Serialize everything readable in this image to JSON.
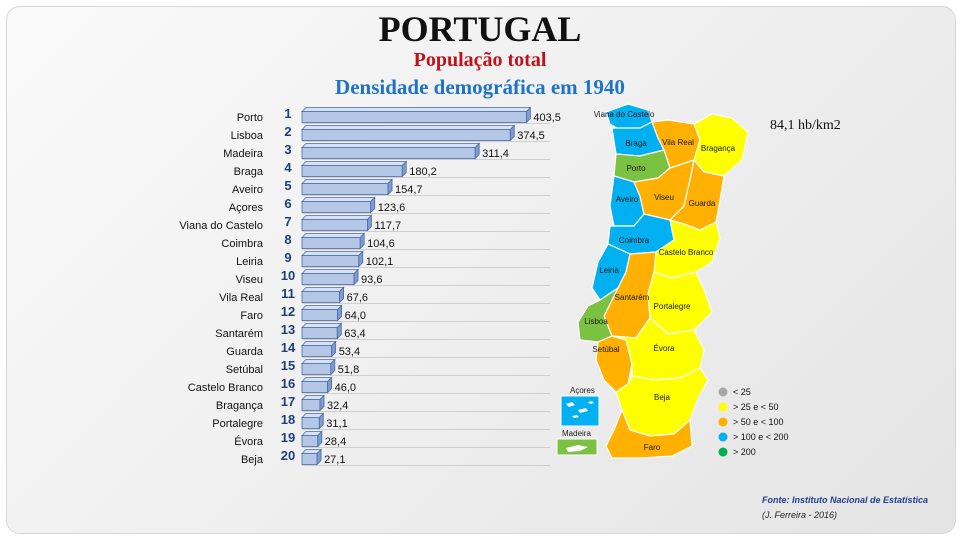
{
  "header": {
    "title": "PORTUGAL",
    "subtitle": "População total",
    "subtitle2": "Densidade demográfica em 1940"
  },
  "national_density": "84,1 hb/km2",
  "source": "Fonte: Instituto Nacional de Estatística",
  "author": "(J. Ferreira - 2016)",
  "map": {
    "regions": [
      {
        "name": "Viana do Castelo",
        "class": "> 100 e < 200"
      },
      {
        "name": "Braga",
        "class": "> 100 e < 200"
      },
      {
        "name": "Vila Real",
        "class": "> 50 e < 100"
      },
      {
        "name": "Bragança",
        "class": "> 25 e < 50"
      },
      {
        "name": "Porto",
        "class": "> 200"
      },
      {
        "name": "Aveiro",
        "class": "> 100 e < 200"
      },
      {
        "name": "Viseu",
        "class": "> 50 e < 100"
      },
      {
        "name": "Guarda",
        "class": "> 50 e < 100"
      },
      {
        "name": "Coimbra",
        "class": "> 100 e < 200"
      },
      {
        "name": "Castelo Branco",
        "class": "> 25 e < 50"
      },
      {
        "name": "Leiria",
        "class": "> 100 e < 200"
      },
      {
        "name": "Santarém",
        "class": "> 50 e < 100"
      },
      {
        "name": "Portalegre",
        "class": "> 25 e < 50"
      },
      {
        "name": "Lisboa",
        "class": "> 200"
      },
      {
        "name": "Setúbal",
        "class": "> 50 e < 100"
      },
      {
        "name": "Évora",
        "class": "> 25 e < 50"
      },
      {
        "name": "Beja",
        "class": "> 25 e < 50"
      },
      {
        "name": "Faro",
        "class": "> 50 e < 100"
      }
    ],
    "islands": [
      {
        "name": "Açores",
        "class": "> 100 e < 200"
      },
      {
        "name": "Madeira",
        "class": "> 200"
      }
    ],
    "legend": [
      {
        "label": "< 25",
        "color": "#a6a6a6"
      },
      {
        "label": "> 25 e < 50",
        "color": "#ffff00"
      },
      {
        "label": "> 50 e < 100",
        "color": "#ffb000"
      },
      {
        "label": "> 100 e < 200",
        "color": "#00b0f0"
      },
      {
        "label": "> 200",
        "color": "#00b050"
      }
    ]
  },
  "chart_data": {
    "type": "bar",
    "orientation": "horizontal",
    "title": "Densidade demográfica em 1940",
    "categories": [
      "Porto",
      "Lisboa",
      "Madeira",
      "Braga",
      "Aveiro",
      "Açores",
      "Viana do Castelo",
      "Coimbra",
      "Leiria",
      "Viseu",
      "Vila Real",
      "Faro",
      "Santarém",
      "Guarda",
      "Setúbal",
      "Castelo Branco",
      "Bragança",
      "Portalegre",
      "Évora",
      "Beja"
    ],
    "ranks": [
      "1",
      "2",
      "3",
      "4",
      "5",
      "6",
      "7",
      "8",
      "9",
      "10",
      "11",
      "12",
      "13",
      "14",
      "15",
      "16",
      "17",
      "18",
      "19",
      "20"
    ],
    "values": [
      403.5,
      374.5,
      311.4,
      180.2,
      154.7,
      123.6,
      117.7,
      104.6,
      102.1,
      93.6,
      67.6,
      64.0,
      63.4,
      53.4,
      51.8,
      46.0,
      32.4,
      31.1,
      28.4,
      27.1
    ],
    "value_labels": [
      "403,5",
      "374,5",
      "311,4",
      "180,2",
      "154,7",
      "123,6",
      "117,7",
      "104,6",
      "102,1",
      "93,6",
      "67,6",
      "64,0",
      "63,4",
      "53,4",
      "51,8",
      "46,0",
      "32,4",
      "31,1",
      "28,4",
      "27,1"
    ],
    "xlim": [
      0,
      410
    ],
    "grid": true,
    "bar_color": "#b4c7e7"
  }
}
